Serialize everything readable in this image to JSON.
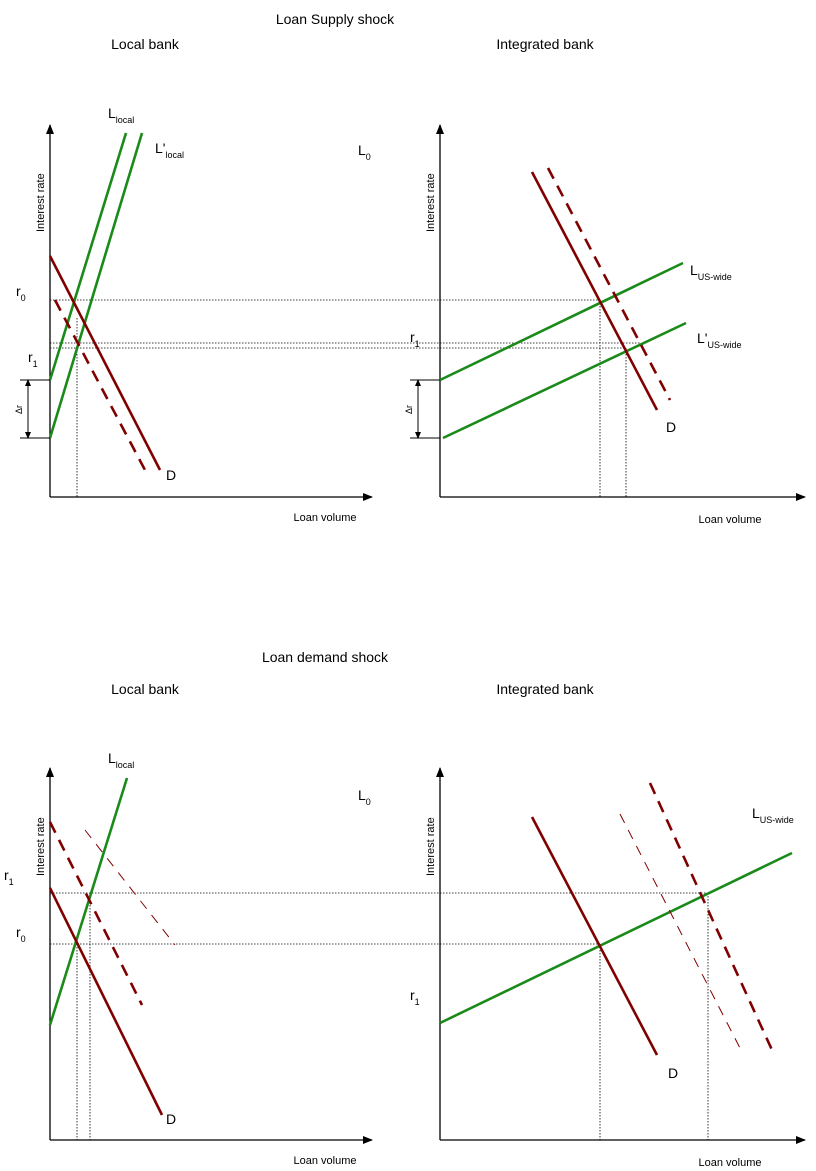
{
  "sections": [
    {
      "title": "Loan Supply shock",
      "note": {
        "main": "L",
        "sub": "0"
      },
      "panels": [
        {
          "title": "Local bank",
          "y_axis": "Interest rate",
          "x_axis": "Loan volume",
          "labels": [
            {
              "main": "L",
              "sub": "local"
            },
            {
              "main": "L'",
              "sub": "local"
            },
            {
              "main": "r",
              "sub": "0"
            },
            {
              "main": "r",
              "sub": "1"
            },
            {
              "main": "Δr"
            },
            {
              "main": "D"
            }
          ]
        },
        {
          "title": "Integrated bank",
          "y_axis": "Interest rate",
          "x_axis": "Loan volume",
          "labels": [
            {
              "main": "L",
              "sub": "US-wide"
            },
            {
              "main": "L'",
              "sub": "US-wide"
            },
            {
              "main": "r",
              "sub": "1"
            },
            {
              "main": "Δr"
            },
            {
              "main": "D"
            }
          ]
        }
      ]
    },
    {
      "title": "Loan demand shock",
      "note": {
        "main": "L",
        "sub": "0"
      },
      "panels": [
        {
          "title": "Local bank",
          "y_axis": "Interest rate",
          "x_axis": "Loan volume",
          "labels": [
            {
              "main": "L",
              "sub": "local"
            },
            {
              "main": "r",
              "sub": "1"
            },
            {
              "main": "r",
              "sub": "0"
            },
            {
              "main": "D"
            }
          ]
        },
        {
          "title": "Integrated bank",
          "y_axis": "Interest rate",
          "x_axis": "Loan volume",
          "labels": [
            {
              "main": "L",
              "sub": "US-wide"
            },
            {
              "main": "r",
              "sub": "1"
            },
            {
              "main": "D"
            }
          ]
        }
      ]
    }
  ]
}
